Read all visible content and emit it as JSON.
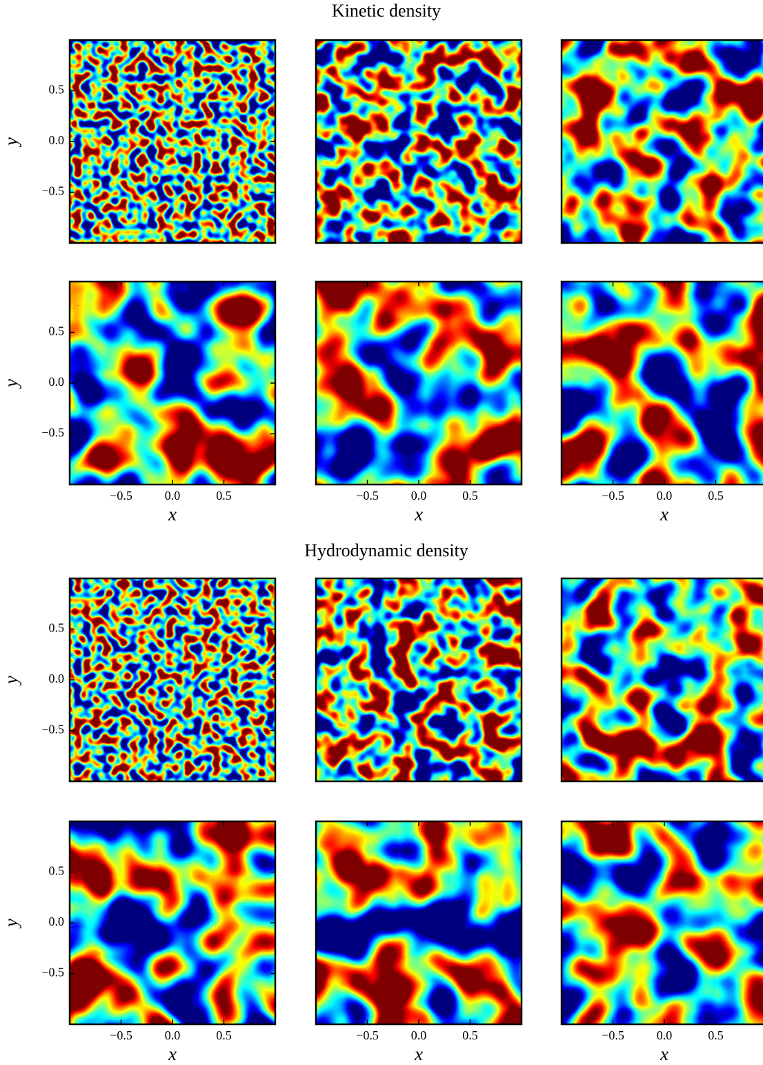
{
  "titles": [
    "Kinetic density",
    "Hydrodynamic density"
  ],
  "chart_data": [
    {
      "type": "heatmap",
      "xlim": [
        -1,
        1
      ],
      "ylim": [
        -1,
        1
      ],
      "ylabel": "y",
      "yticks": [
        {
          "value": -0.5,
          "label": "−0.5"
        },
        {
          "value": 0,
          "label": "0.0"
        },
        0.5
      ]
    },
    {
      "type": "heatmap",
      "xlim": [
        -1,
        1
      ],
      "ylim": [
        -1,
        1
      ]
    },
    {
      "type": "heatmap",
      "xlim": [
        -1,
        1
      ],
      "ylim": [
        -1,
        1
      ]
    },
    {
      "type": "heatmap",
      "xlim": [
        -1,
        1
      ],
      "ylim": [
        -1,
        1
      ],
      "ylabel": "y",
      "yticks": [
        {
          "value": -0.5,
          "label": "−0.5"
        },
        {
          "value": 0,
          "label": "0.0"
        },
        0.5
      ],
      "xlabel": "x",
      "xticks": [
        {
          "value": -0.5,
          "label": "−0.5"
        },
        {
          "value": 0,
          "label": "0.0"
        },
        0.5
      ]
    },
    {
      "type": "heatmap",
      "xlim": [
        -1,
        1
      ],
      "ylim": [
        -1,
        1
      ],
      "xlabel": "x",
      "xticks": [
        {
          "value": -0.5,
          "label": "−0.5"
        },
        {
          "value": 0,
          "label": "0.0"
        },
        0.5
      ]
    },
    {
      "type": "heatmap",
      "xlim": [
        -1,
        1
      ],
      "ylim": [
        -1,
        1
      ],
      "xlabel": "x",
      "xticks": [
        {
          "value": -0.5,
          "label": "−0.5"
        },
        {
          "value": 0,
          "label": "0.0"
        },
        0.5
      ]
    },
    {
      "type": "heatmap",
      "xlim": [
        -1,
        1
      ],
      "ylim": [
        -1,
        1
      ],
      "ylabel": "y",
      "yticks": [
        {
          "value": -0.5,
          "label": "−0.5"
        },
        {
          "value": 0,
          "label": "0.0"
        },
        0.5
      ]
    },
    {
      "type": "heatmap",
      "xlim": [
        -1,
        1
      ],
      "ylim": [
        -1,
        1
      ]
    },
    {
      "type": "heatmap",
      "xlim": [
        -1,
        1
      ],
      "ylim": [
        -1,
        1
      ]
    },
    {
      "type": "heatmap",
      "xlim": [
        -1,
        1
      ],
      "ylim": [
        -1,
        1
      ],
      "ylabel": "y",
      "yticks": [
        {
          "value": -0.5,
          "label": "−0.5"
        },
        {
          "value": 0,
          "label": "0.0"
        },
        0.5
      ],
      "xlabel": "x",
      "xticks": [
        {
          "value": -0.5,
          "label": "−0.5"
        },
        {
          "value": 0,
          "label": "0.0"
        },
        0.5
      ]
    },
    {
      "type": "heatmap",
      "xlim": [
        -1,
        1
      ],
      "ylim": [
        -1,
        1
      ],
      "xlabel": "x",
      "xticks": [
        {
          "value": -0.5,
          "label": "−0.5"
        },
        {
          "value": 0,
          "label": "0.0"
        },
        0.5
      ]
    },
    {
      "type": "heatmap",
      "xlim": [
        -1,
        1
      ],
      "ylim": [
        -1,
        1
      ],
      "xlabel": "x",
      "xticks": [
        {
          "value": -0.5,
          "label": "−0.5"
        },
        {
          "value": 0,
          "label": "0.0"
        },
        0.5
      ]
    }
  ]
}
